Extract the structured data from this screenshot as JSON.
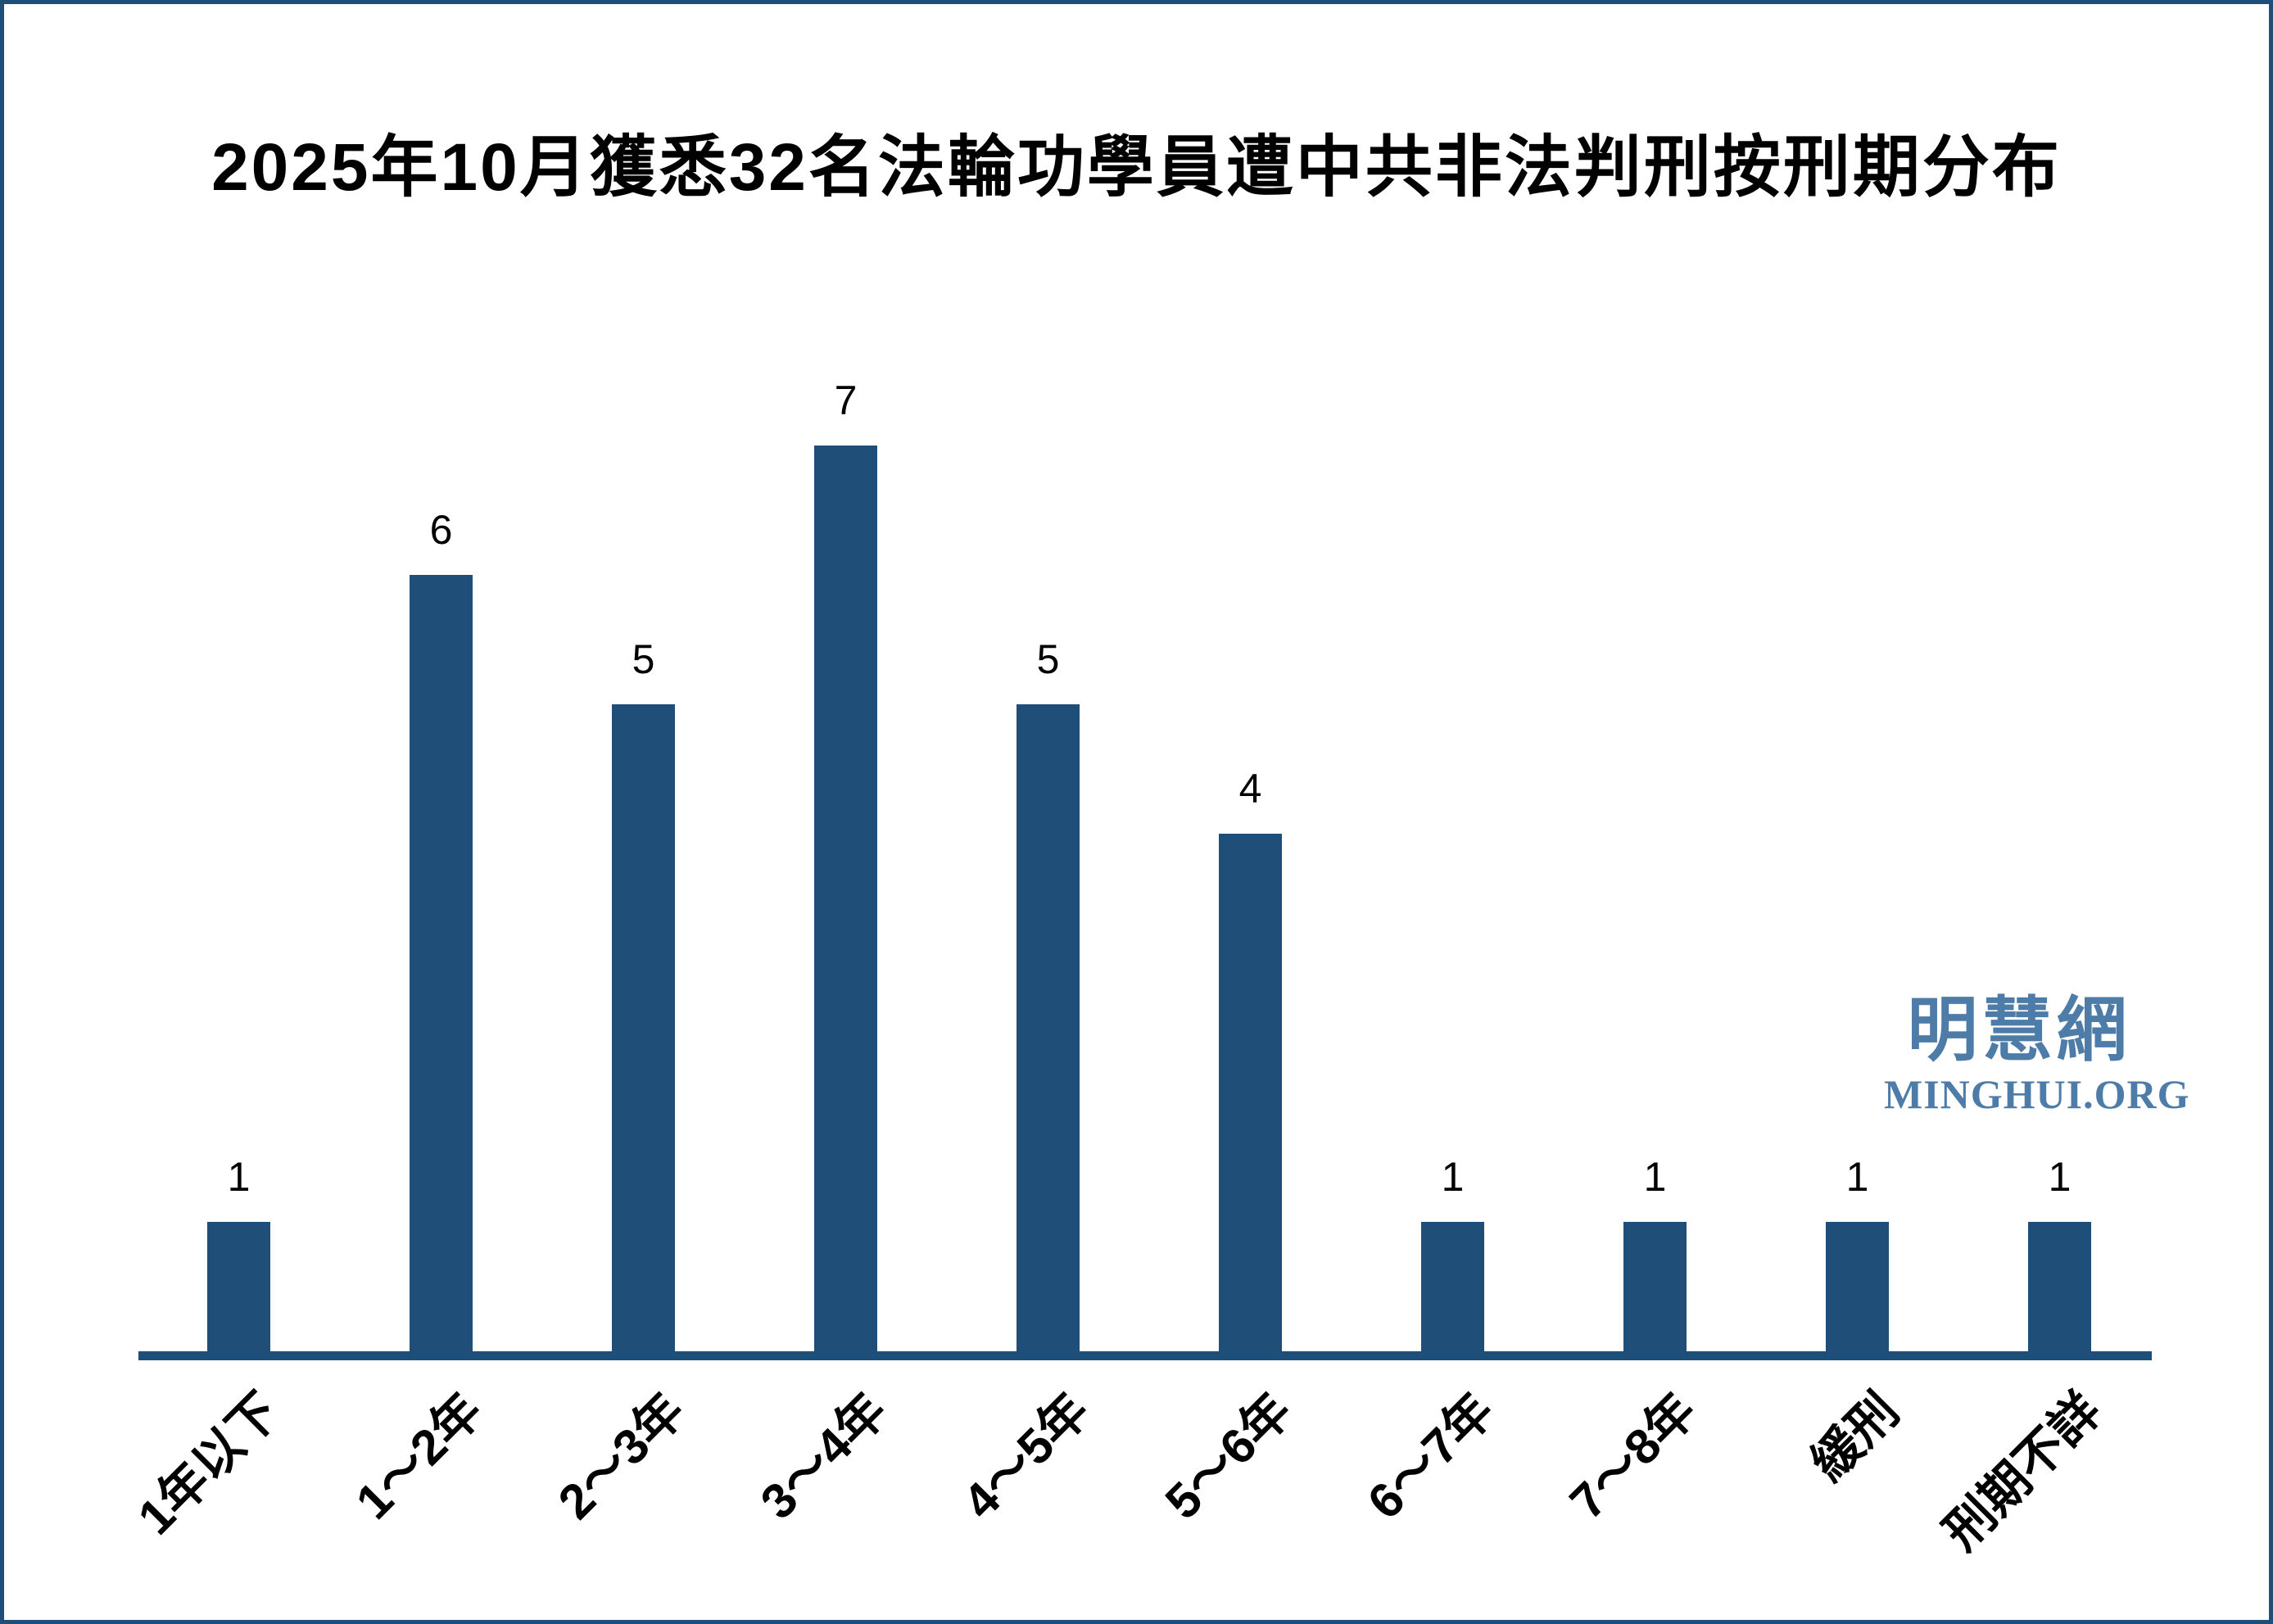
{
  "title": "2025年10月獲悉32名法輪功學員遭中共非法判刑按刑期分布",
  "watermark": {
    "cjk": "明慧網",
    "latin": "MINGHUI.ORG",
    "color": "#4E7CA8"
  },
  "colors": {
    "bar": "#1F4E79",
    "axis": "#1F4E79",
    "border": "#1F4E79",
    "text": "#000000",
    "background": "#FFFFFF"
  },
  "chart_data": {
    "type": "bar",
    "title": "2025年10月獲悉32名法輪功學員遭中共非法判刑按刑期分布",
    "categories": [
      "1年以下",
      "1～2年",
      "2～3年",
      "3～4年",
      "4～5年",
      "5～6年",
      "6～7年",
      "7～8年",
      "緩刑",
      "刑期不詳"
    ],
    "values": [
      1,
      6,
      5,
      7,
      5,
      4,
      1,
      1,
      1,
      1
    ],
    "value_labels": [
      "1",
      "6",
      "5",
      "7",
      "5",
      "4",
      "1",
      "1",
      "1",
      "1"
    ],
    "xlabel": "",
    "ylabel": "",
    "ylim": [
      0,
      7
    ],
    "grid": false,
    "legend": false,
    "bar_color": "#1F4E79",
    "x_tick_rotation_deg": 45
  }
}
